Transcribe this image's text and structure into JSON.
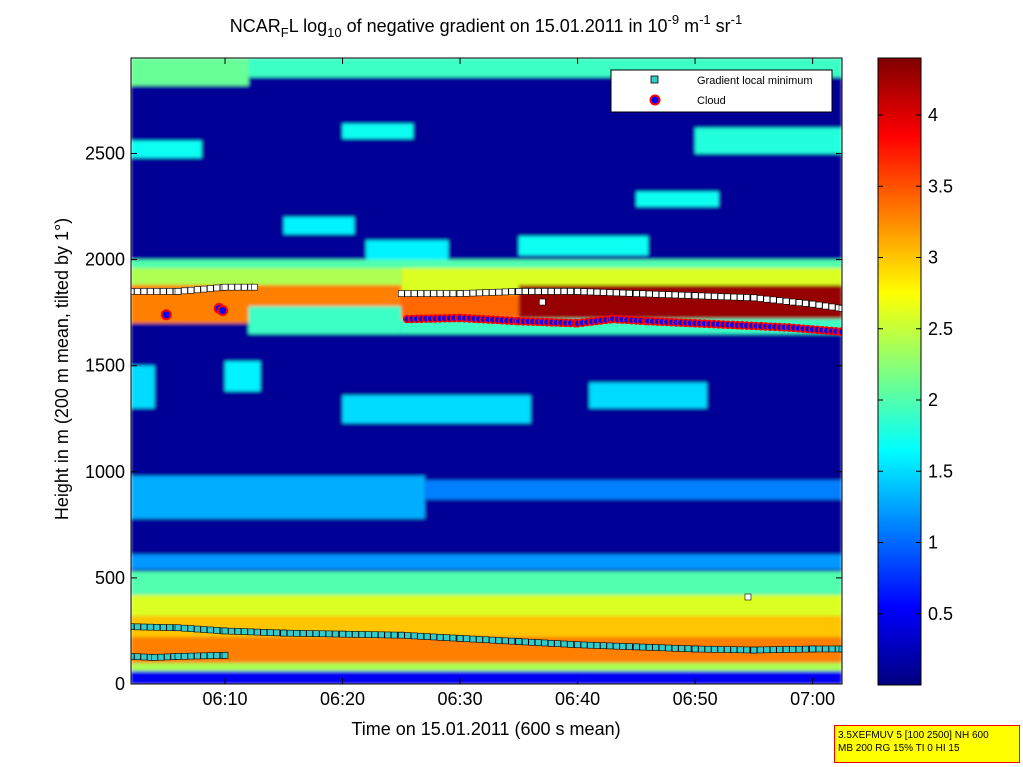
{
  "chart_data": {
    "type": "heatmap",
    "title": {
      "pre": "NCAR",
      "sub1": "F",
      "mid": "L log",
      "sub2": "10",
      "rest": " of negative gradient on 15.01.2011 in 10",
      "sup1": "-9",
      "unit1": " m",
      "sup2": "-1",
      "unit2": " sr",
      "sup3": "-1"
    },
    "xlabel": "Time on 15.01.2011 (600 s mean)",
    "ylabel": "Height in m (200 m mean, tilted by 1°)",
    "xlim_minutes": [
      2,
      62.5
    ],
    "ylim": [
      0,
      2950
    ],
    "x_ticks": [
      {
        "label": "06:10",
        "value": 10
      },
      {
        "label": "06:20",
        "value": 20
      },
      {
        "label": "06:30",
        "value": 30
      },
      {
        "label": "06:40",
        "value": 40
      },
      {
        "label": "06:50",
        "value": 50
      },
      {
        "label": "07:00",
        "value": 60
      }
    ],
    "y_ticks": [
      0,
      500,
      1000,
      1500,
      2000,
      2500
    ],
    "colorbar": {
      "ticks": [
        {
          "label": "0.5",
          "value": 0.5
        },
        {
          "label": "1",
          "value": 1
        },
        {
          "label": "1.5",
          "value": 1.5
        },
        {
          "label": "2",
          "value": 2
        },
        {
          "label": "2.5",
          "value": 2.5
        },
        {
          "label": "3",
          "value": 3
        },
        {
          "label": "3.5",
          "value": 3.5
        },
        {
          "label": "4",
          "value": 4
        }
      ],
      "range": [
        0,
        4.4
      ]
    },
    "legend": {
      "placement": "top-right",
      "entries": [
        {
          "label": "Gradient local minimum",
          "marker": "square",
          "color": "#33cccc"
        },
        {
          "label": "Cloud",
          "marker": "circle",
          "color": "#0000ff",
          "edge": "#ff0000"
        }
      ]
    },
    "bands": [
      {
        "x0": 2,
        "x1": 62.5,
        "y0": 0,
        "y1": 2950,
        "value": 0.1
      },
      {
        "x0": 2,
        "x1": 12,
        "y0": 2820,
        "y1": 2950,
        "value": 2.1
      },
      {
        "x0": 12,
        "x1": 62.5,
        "y0": 2860,
        "y1": 2950,
        "value": 1.9
      },
      {
        "x0": 2,
        "x1": 8,
        "y0": 2480,
        "y1": 2560,
        "value": 1.7
      },
      {
        "x0": 20,
        "x1": 26,
        "y0": 2570,
        "y1": 2640,
        "value": 1.7
      },
      {
        "x0": 15,
        "x1": 21,
        "y0": 2120,
        "y1": 2200,
        "value": 1.6
      },
      {
        "x0": 50,
        "x1": 62.5,
        "y0": 2500,
        "y1": 2620,
        "value": 1.8
      },
      {
        "x0": 45,
        "x1": 52,
        "y0": 2250,
        "y1": 2320,
        "value": 1.7
      },
      {
        "x0": 22,
        "x1": 29,
        "y0": 1990,
        "y1": 2090,
        "value": 1.6
      },
      {
        "x0": 35,
        "x1": 46,
        "y0": 2020,
        "y1": 2110,
        "value": 1.7
      },
      {
        "x0": 2,
        "x1": 62.5,
        "y0": 1940,
        "y1": 2000,
        "value": 2.0
      },
      {
        "x0": 2,
        "x1": 25,
        "y0": 1880,
        "y1": 1960,
        "value": 2.4
      },
      {
        "x0": 25,
        "x1": 62.5,
        "y0": 1840,
        "y1": 1960,
        "value": 2.6
      },
      {
        "x0": 2,
        "x1": 25,
        "y0": 1700,
        "y1": 1880,
        "value": 3.3
      },
      {
        "x0": 12,
        "x1": 25,
        "y0": 1650,
        "y1": 1780,
        "value": 1.9
      },
      {
        "x0": 25,
        "x1": 62.5,
        "y0": 1720,
        "y1": 1840,
        "value": 3.4
      },
      {
        "x0": 35,
        "x1": 62.5,
        "y0": 1720,
        "y1": 1880,
        "value": 4.3
      },
      {
        "x0": 25,
        "x1": 62.5,
        "y0": 1650,
        "y1": 1720,
        "value": 1.9
      },
      {
        "x0": 2,
        "x1": 4,
        "y0": 1300,
        "y1": 1500,
        "value": 1.5
      },
      {
        "x0": 10,
        "x1": 13,
        "y0": 1380,
        "y1": 1520,
        "value": 1.6
      },
      {
        "x0": 20,
        "x1": 36,
        "y0": 1230,
        "y1": 1360,
        "value": 1.5
      },
      {
        "x0": 41,
        "x1": 51,
        "y0": 1300,
        "y1": 1420,
        "value": 1.5
      },
      {
        "x0": 2,
        "x1": 27,
        "y0": 780,
        "y1": 980,
        "value": 1.3
      },
      {
        "x0": 27,
        "x1": 62.5,
        "y0": 870,
        "y1": 960,
        "value": 1.1
      },
      {
        "x0": 2,
        "x1": 62.5,
        "y0": 540,
        "y1": 610,
        "value": 1.2
      },
      {
        "x0": 2,
        "x1": 62.5,
        "y0": 420,
        "y1": 530,
        "value": 2.0
      },
      {
        "x0": 2,
        "x1": 62.5,
        "y0": 320,
        "y1": 420,
        "value": 2.6
      },
      {
        "x0": 2,
        "x1": 62.5,
        "y0": 220,
        "y1": 320,
        "value": 3.0
      },
      {
        "x0": 2,
        "x1": 62.5,
        "y0": 100,
        "y1": 220,
        "value": 3.3
      },
      {
        "x0": 2,
        "x1": 62.5,
        "y0": 60,
        "y1": 100,
        "value": 2.4
      },
      {
        "x0": 2,
        "x1": 62.5,
        "y0": 0,
        "y1": 60,
        "value": 0.5
      }
    ],
    "gradient_minimum_series": [
      {
        "x": [
          2,
          6,
          10,
          12.5
        ],
        "y": [
          1850,
          1850,
          1870,
          1870
        ]
      },
      {
        "x": [
          25,
          30,
          35,
          40,
          45,
          50,
          55,
          60,
          62.5
        ],
        "y": [
          1840,
          1840,
          1850,
          1850,
          1840,
          1830,
          1820,
          1790,
          1770
        ]
      },
      {
        "x": [
          2,
          6,
          10,
          15,
          20,
          25,
          30,
          35,
          40,
          45,
          50,
          55,
          60,
          62.5
        ],
        "y": [
          270,
          265,
          250,
          240,
          235,
          230,
          215,
          200,
          185,
          175,
          165,
          160,
          165,
          165
        ]
      },
      {
        "x": [
          2,
          4,
          6,
          10
        ],
        "y": [
          130,
          125,
          130,
          135
        ]
      }
    ],
    "gradient_minimum_points": [
      {
        "x": 37,
        "y": 1800
      },
      {
        "x": 54.5,
        "y": 410
      }
    ],
    "cloud_series": [
      {
        "x": [
          25.5,
          30,
          35,
          40,
          43,
          46,
          50,
          54,
          58,
          62.5
        ],
        "y": [
          1720,
          1725,
          1710,
          1700,
          1720,
          1710,
          1700,
          1690,
          1680,
          1660
        ]
      }
    ],
    "cloud_points": [
      {
        "x": 5,
        "y": 1740
      },
      {
        "x": 9.5,
        "y": 1770
      },
      {
        "x": 9.8,
        "y": 1760
      }
    ]
  },
  "info_box": {
    "line1": "3.5XEFMUV 5 [100 2500] NH 600",
    "line2": "MB 200 RG 15% TI 0 HI 15"
  }
}
